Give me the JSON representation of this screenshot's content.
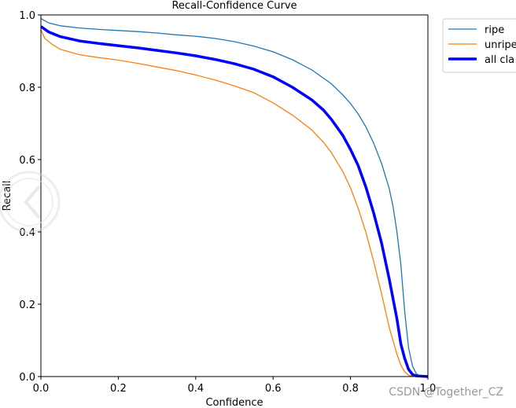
{
  "chart_data": {
    "type": "line",
    "title": "Recall-Confidence Curve",
    "xlabel": "Confidence",
    "ylabel": "Recall",
    "xlim": [
      0,
      1
    ],
    "ylim": [
      0,
      1
    ],
    "xticks": [
      0,
      0.2,
      0.4,
      0.6,
      0.8,
      1.0
    ],
    "xtick_labels": [
      "0.0",
      "0.2",
      "0.4",
      "0.6",
      "0.8",
      "1.0"
    ],
    "yticks": [
      0,
      0.2,
      0.4,
      0.6,
      0.8,
      1.0
    ],
    "ytick_labels": [
      "0.0",
      "0.2",
      "0.4",
      "0.6",
      "0.8",
      "1.0"
    ],
    "grid": false,
    "legend_position": "outside top-right",
    "series": [
      {
        "name": "ripe",
        "color": "#1f77b4",
        "width": "thin",
        "points": [
          [
            0,
            0.99
          ],
          [
            0.02,
            0.978
          ],
          [
            0.05,
            0.97
          ],
          [
            0.1,
            0.964
          ],
          [
            0.15,
            0.96
          ],
          [
            0.2,
            0.957
          ],
          [
            0.25,
            0.954
          ],
          [
            0.3,
            0.95
          ],
          [
            0.35,
            0.945
          ],
          [
            0.4,
            0.941
          ],
          [
            0.45,
            0.935
          ],
          [
            0.5,
            0.926
          ],
          [
            0.55,
            0.914
          ],
          [
            0.6,
            0.898
          ],
          [
            0.65,
            0.876
          ],
          [
            0.7,
            0.848
          ],
          [
            0.75,
            0.81
          ],
          [
            0.78,
            0.779
          ],
          [
            0.8,
            0.755
          ],
          [
            0.82,
            0.726
          ],
          [
            0.84,
            0.69
          ],
          [
            0.86,
            0.645
          ],
          [
            0.88,
            0.59
          ],
          [
            0.9,
            0.52
          ],
          [
            0.91,
            0.47
          ],
          [
            0.92,
            0.4
          ],
          [
            0.93,
            0.31
          ],
          [
            0.94,
            0.18
          ],
          [
            0.95,
            0.08
          ],
          [
            0.96,
            0.03
          ],
          [
            0.97,
            0.008
          ],
          [
            0.98,
            0.001
          ],
          [
            1.0,
            0
          ]
        ]
      },
      {
        "name": "unripe",
        "color": "#ff7f0e",
        "width": "thin",
        "points": [
          [
            0,
            0.96
          ],
          [
            0.01,
            0.935
          ],
          [
            0.03,
            0.918
          ],
          [
            0.05,
            0.905
          ],
          [
            0.1,
            0.89
          ],
          [
            0.15,
            0.882
          ],
          [
            0.2,
            0.875
          ],
          [
            0.25,
            0.866
          ],
          [
            0.3,
            0.856
          ],
          [
            0.35,
            0.846
          ],
          [
            0.4,
            0.834
          ],
          [
            0.45,
            0.82
          ],
          [
            0.5,
            0.804
          ],
          [
            0.55,
            0.785
          ],
          [
            0.6,
            0.757
          ],
          [
            0.65,
            0.723
          ],
          [
            0.7,
            0.682
          ],
          [
            0.73,
            0.648
          ],
          [
            0.75,
            0.62
          ],
          [
            0.78,
            0.567
          ],
          [
            0.8,
            0.522
          ],
          [
            0.82,
            0.465
          ],
          [
            0.84,
            0.398
          ],
          [
            0.86,
            0.318
          ],
          [
            0.88,
            0.23
          ],
          [
            0.9,
            0.136
          ],
          [
            0.92,
            0.062
          ],
          [
            0.93,
            0.032
          ],
          [
            0.94,
            0.013
          ],
          [
            0.95,
            0.004
          ],
          [
            0.96,
            0.001
          ],
          [
            1.0,
            0
          ]
        ]
      },
      {
        "name": "all cla",
        "color": "#0000ff",
        "width": "thick",
        "points": [
          [
            0,
            0.968
          ],
          [
            0.02,
            0.953
          ],
          [
            0.05,
            0.94
          ],
          [
            0.1,
            0.928
          ],
          [
            0.15,
            0.921
          ],
          [
            0.2,
            0.915
          ],
          [
            0.25,
            0.909
          ],
          [
            0.3,
            0.902
          ],
          [
            0.35,
            0.895
          ],
          [
            0.4,
            0.887
          ],
          [
            0.45,
            0.877
          ],
          [
            0.5,
            0.865
          ],
          [
            0.55,
            0.85
          ],
          [
            0.6,
            0.829
          ],
          [
            0.65,
            0.8
          ],
          [
            0.7,
            0.765
          ],
          [
            0.73,
            0.737
          ],
          [
            0.75,
            0.712
          ],
          [
            0.78,
            0.667
          ],
          [
            0.8,
            0.628
          ],
          [
            0.82,
            0.583
          ],
          [
            0.84,
            0.523
          ],
          [
            0.86,
            0.452
          ],
          [
            0.88,
            0.37
          ],
          [
            0.9,
            0.27
          ],
          [
            0.92,
            0.16
          ],
          [
            0.93,
            0.09
          ],
          [
            0.94,
            0.05
          ],
          [
            0.95,
            0.02
          ],
          [
            0.96,
            0.006
          ],
          [
            0.97,
            0.002
          ],
          [
            1.0,
            0
          ]
        ]
      }
    ]
  },
  "watermark": "CSDN @Together_CZ"
}
